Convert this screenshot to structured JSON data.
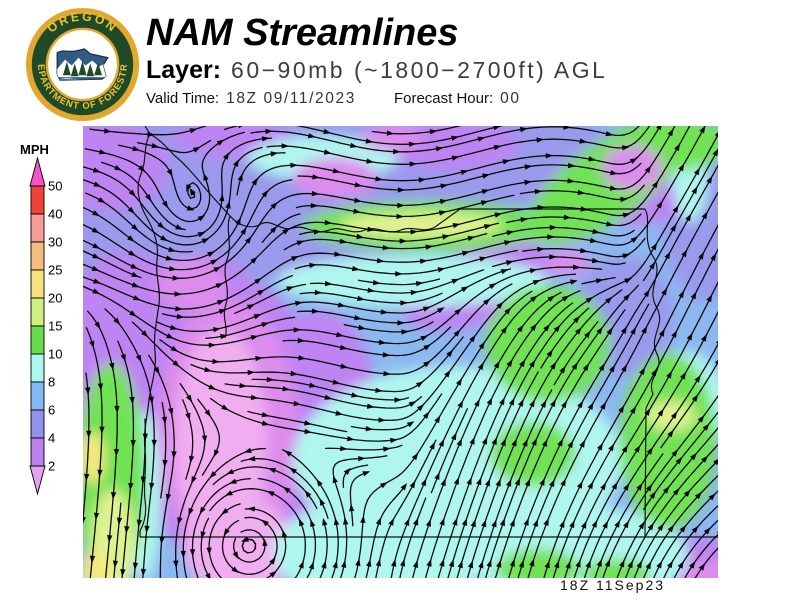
{
  "header": {
    "title": "NAM Streamlines",
    "layer_label": "Layer:",
    "layer_value": "60−90mb (~1800−2700ft) AGL",
    "valid_time_label": "Valid Time:",
    "valid_time_value": "18Z 09/11/2023",
    "forecast_label": "Forecast Hour:",
    "forecast_value": "00"
  },
  "logo": {
    "top_text": "OREGON",
    "bottom_text": "DEPARTMENT OF FORESTRY",
    "gold": "#E2A82E",
    "green": "#1F4A28",
    "navy": "#2F5B84"
  },
  "legend": {
    "title": "MPH",
    "labels": [
      "50",
      "40",
      "30",
      "25",
      "20",
      "15",
      "10",
      "8",
      "6",
      "4",
      "2"
    ],
    "segment_colors": [
      "#EE4338",
      "#F59D97",
      "#F2BD7E",
      "#F5E27B",
      "#CFF07E",
      "#67DD4D",
      "#AAF8F0",
      "#84B8F0",
      "#9193EA",
      "#BC7FEE"
    ],
    "top_arrow_color": "#F554C8",
    "bottom_arrow_color": "#E2A4F0"
  },
  "map": {
    "timestamp": "18Z 11Sep23",
    "stream_color": "#000000",
    "border_color": "#000000",
    "palette": {
      "base": "#8CB8F0",
      "violet": "#9A9AEC",
      "purple": "#BE84F2",
      "magenta": "#DC8CEC",
      "pink": "#F0AEF0",
      "cyan": "#AFF6EF",
      "green": "#72E254",
      "ygreen": "#DFF291",
      "yellow": "#F5E87E"
    }
  }
}
